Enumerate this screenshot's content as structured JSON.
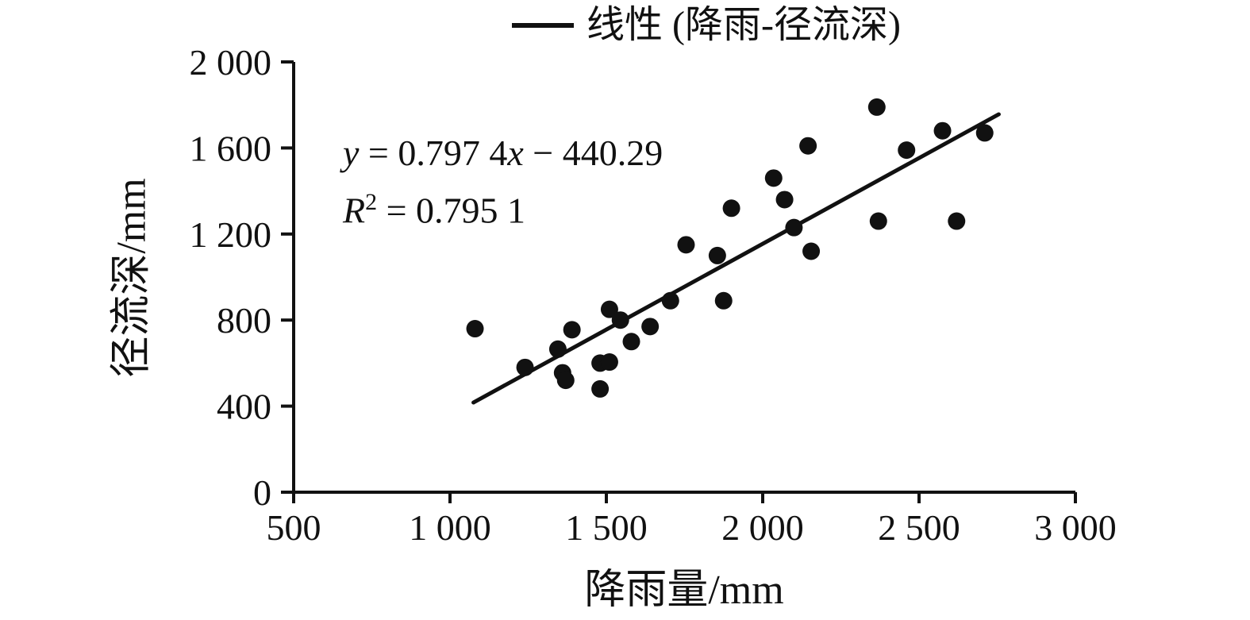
{
  "legend": {
    "label": "线性 (降雨-径流深)"
  },
  "annotation": {
    "equation": {
      "var_y": "y",
      "mid": " = 0.797 4",
      "var_x": "x",
      "tail": " − 440.29"
    },
    "r2": {
      "base": "R",
      "sup": "2",
      "rest": " = 0.795 1"
    }
  },
  "axes": {
    "x_label": "降雨量/mm",
    "y_label": "径流深/mm"
  },
  "chart_data": {
    "type": "scatter",
    "title": "",
    "xlabel": "降雨量/mm",
    "ylabel": "径流深/mm",
    "xlim": [
      500,
      3000
    ],
    "ylim": [
      0,
      2000
    ],
    "x_ticks": [
      500,
      1000,
      1500,
      2000,
      2500,
      3000
    ],
    "y_ticks": [
      0,
      400,
      800,
      1200,
      1600,
      2000
    ],
    "grid": false,
    "legend_position": "top-center",
    "series_name": "降雨-径流深",
    "points": [
      [
        1080,
        760
      ],
      [
        1240,
        580
      ],
      [
        1345,
        665
      ],
      [
        1360,
        555
      ],
      [
        1370,
        520
      ],
      [
        1390,
        755
      ],
      [
        1480,
        600
      ],
      [
        1480,
        480
      ],
      [
        1510,
        605
      ],
      [
        1510,
        850
      ],
      [
        1545,
        800
      ],
      [
        1580,
        700
      ],
      [
        1640,
        770
      ],
      [
        1705,
        890
      ],
      [
        1755,
        1150
      ],
      [
        1855,
        1100
      ],
      [
        1875,
        890
      ],
      [
        1900,
        1320
      ],
      [
        2035,
        1460
      ],
      [
        2070,
        1360
      ],
      [
        2100,
        1230
      ],
      [
        2145,
        1610
      ],
      [
        2155,
        1120
      ],
      [
        2365,
        1790
      ],
      [
        2370,
        1260
      ],
      [
        2460,
        1590
      ],
      [
        2575,
        1680
      ],
      [
        2620,
        1260
      ],
      [
        2710,
        1670
      ]
    ],
    "trendline": {
      "type": "linear",
      "slope": 0.7974,
      "intercept": -440.29,
      "x_start": 1075,
      "x_end": 2755,
      "equation": "y = 0.797 4x − 440.29",
      "r_squared": 0.7951,
      "label": "线性 (降雨-径流深)"
    },
    "point_color": "#111111",
    "line_color": "#111111"
  }
}
